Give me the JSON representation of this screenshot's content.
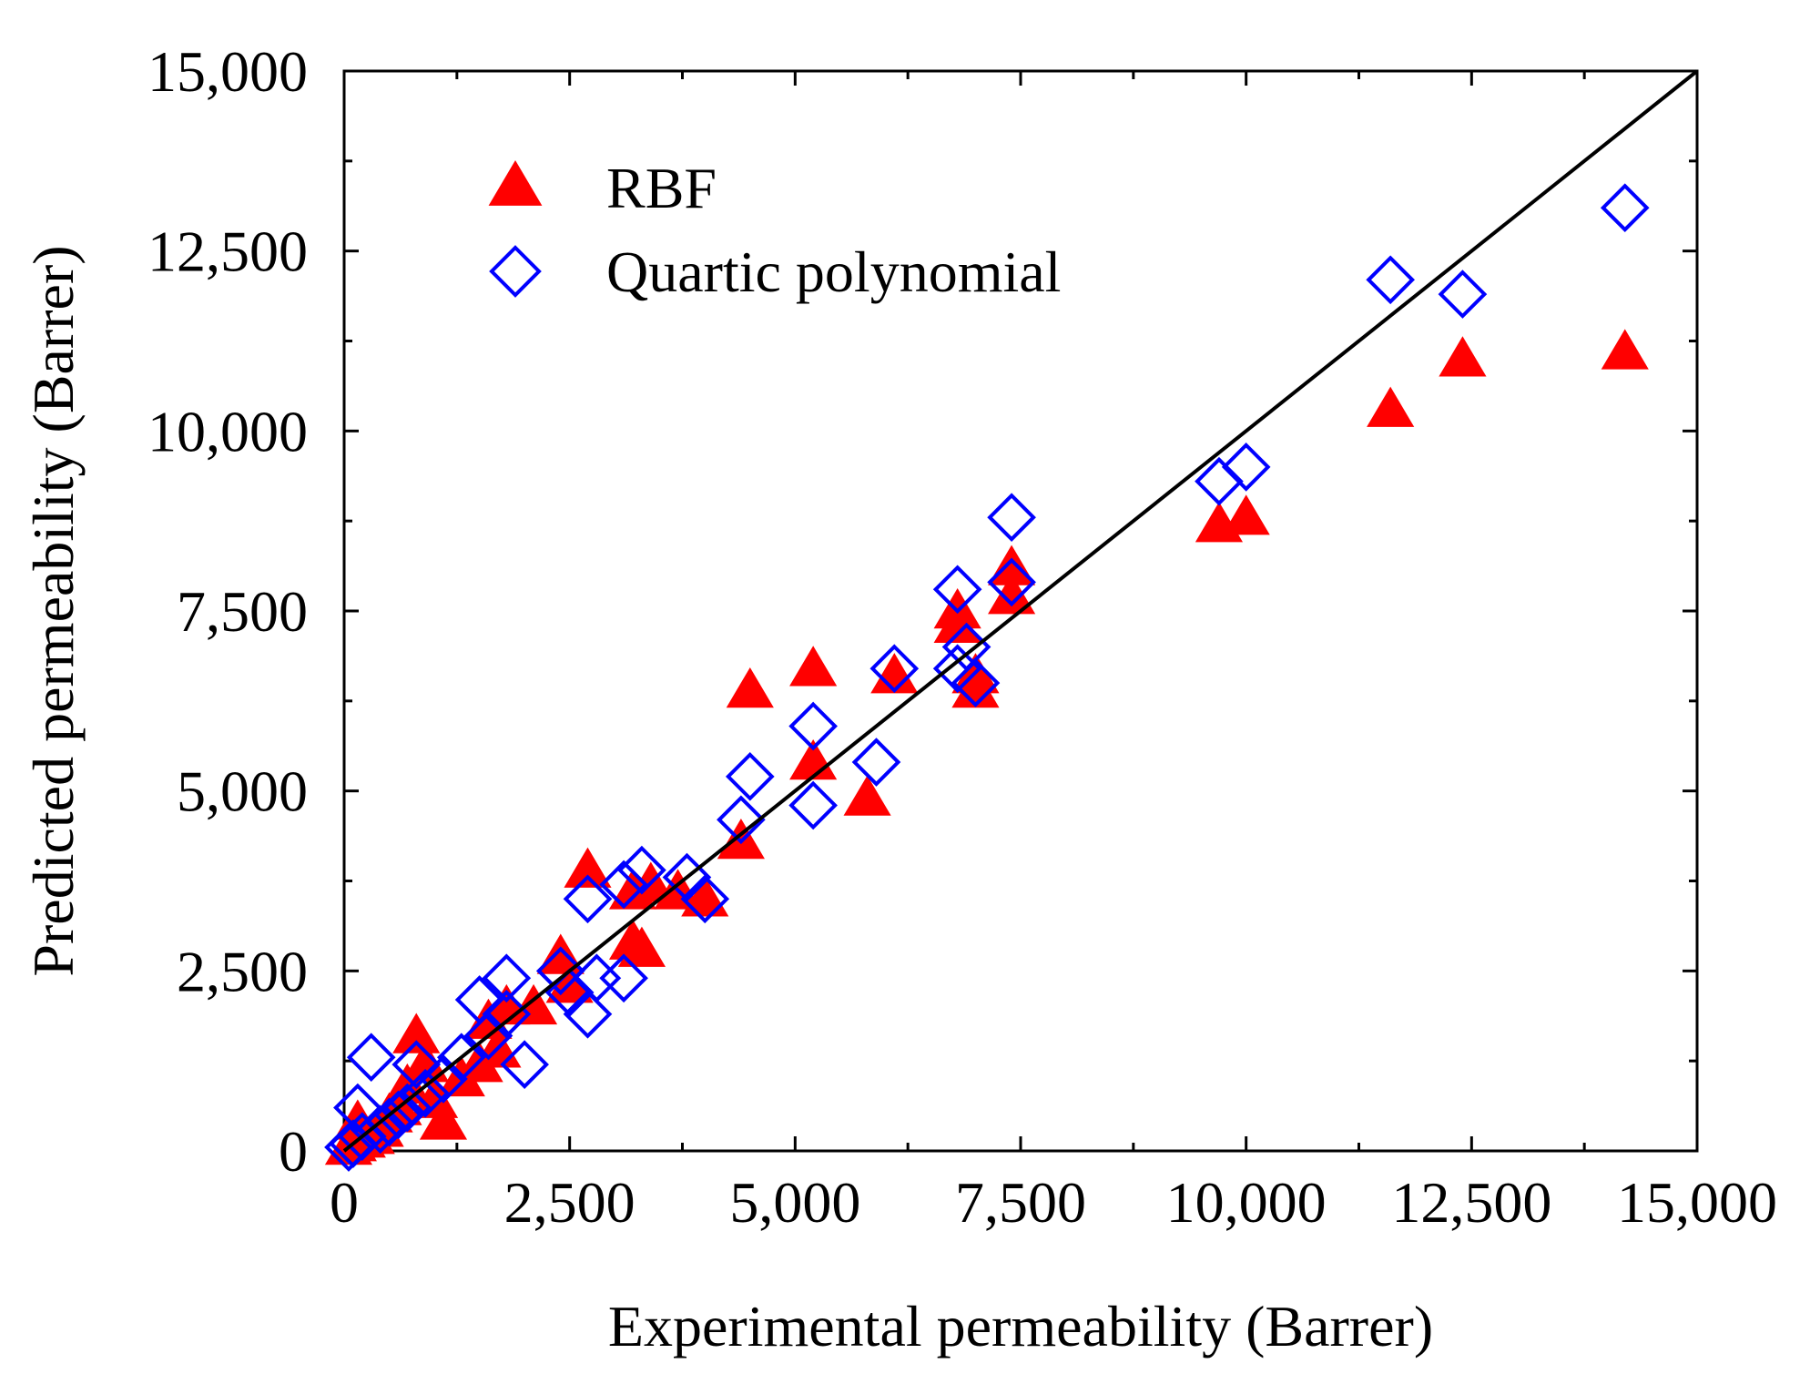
{
  "chart_data": {
    "type": "scatter",
    "title": "",
    "xlabel": "Experimental permeability (Barrer)",
    "ylabel": "Predicted permeability (Barrer)",
    "xlim": [
      0,
      15000
    ],
    "ylim": [
      0,
      15000
    ],
    "x_ticks": [
      0,
      2500,
      5000,
      7500,
      10000,
      12500,
      15000
    ],
    "y_ticks": [
      0,
      2500,
      5000,
      7500,
      10000,
      12500,
      15000
    ],
    "x_tick_labels": [
      "0",
      "2,500",
      "5,000",
      "7,500",
      "10,000",
      "12,500",
      "15,000"
    ],
    "y_tick_labels": [
      "0",
      "2,500",
      "5,000",
      "7,500",
      "10,000",
      "12,500",
      "15,000"
    ],
    "reference_line": {
      "from": [
        0,
        0
      ],
      "to": [
        15000,
        15000
      ],
      "color": "#000000"
    },
    "legend_position": "top-left",
    "series": [
      {
        "name": "RBF",
        "marker": "filled-triangle",
        "color": "#ff0000",
        "points": [
          [
            14200,
            11100
          ],
          [
            12400,
            11000
          ],
          [
            11600,
            10300
          ],
          [
            10000,
            8800
          ],
          [
            9700,
            8700
          ],
          [
            7400,
            8100
          ],
          [
            7400,
            7700
          ],
          [
            6800,
            7500
          ],
          [
            6800,
            7300
          ],
          [
            7000,
            6600
          ],
          [
            7000,
            6400
          ],
          [
            6100,
            6600
          ],
          [
            5200,
            6700
          ],
          [
            4500,
            6400
          ],
          [
            5200,
            5400
          ],
          [
            5800,
            4900
          ],
          [
            4400,
            4300
          ],
          [
            2700,
            3900
          ],
          [
            3200,
            3600
          ],
          [
            3400,
            3700
          ],
          [
            3700,
            3600
          ],
          [
            4000,
            3500
          ],
          [
            3200,
            2900
          ],
          [
            3300,
            2800
          ],
          [
            2400,
            2700
          ],
          [
            2500,
            2300
          ],
          [
            2100,
            2000
          ],
          [
            1800,
            2000
          ],
          [
            1600,
            1800
          ],
          [
            1700,
            1400
          ],
          [
            1500,
            1200
          ],
          [
            1300,
            1000
          ],
          [
            800,
            1600
          ],
          [
            900,
            1200
          ],
          [
            1100,
            400
          ],
          [
            1000,
            700
          ],
          [
            700,
            900
          ],
          [
            600,
            600
          ],
          [
            500,
            500
          ],
          [
            400,
            300
          ],
          [
            300,
            200
          ],
          [
            200,
            150
          ],
          [
            150,
            400
          ],
          [
            100,
            100
          ],
          [
            50,
            50
          ]
        ]
      },
      {
        "name": "Quartic polynomial",
        "marker": "open-diamond",
        "color": "#0000ff",
        "points": [
          [
            14200,
            13100
          ],
          [
            11600,
            12100
          ],
          [
            12400,
            11900
          ],
          [
            10000,
            9500
          ],
          [
            9700,
            9300
          ],
          [
            7400,
            8800
          ],
          [
            7400,
            7900
          ],
          [
            6800,
            7800
          ],
          [
            6900,
            7000
          ],
          [
            6800,
            6700
          ],
          [
            7000,
            6500
          ],
          [
            6100,
            6700
          ],
          [
            5200,
            5900
          ],
          [
            5900,
            5400
          ],
          [
            5200,
            4800
          ],
          [
            4500,
            5200
          ],
          [
            4400,
            4600
          ],
          [
            3300,
            3900
          ],
          [
            3100,
            3700
          ],
          [
            3800,
            3800
          ],
          [
            4000,
            3500
          ],
          [
            2700,
            3500
          ],
          [
            3100,
            2400
          ],
          [
            2400,
            2500
          ],
          [
            2500,
            2200
          ],
          [
            2700,
            1900
          ],
          [
            2800,
            2400
          ],
          [
            1800,
            2400
          ],
          [
            1500,
            2100
          ],
          [
            1800,
            1900
          ],
          [
            2000,
            1200
          ],
          [
            1600,
            1600
          ],
          [
            1300,
            1300
          ],
          [
            1100,
            1000
          ],
          [
            900,
            800
          ],
          [
            800,
            1200
          ],
          [
            700,
            600
          ],
          [
            600,
            500
          ],
          [
            500,
            400
          ],
          [
            400,
            300
          ],
          [
            300,
            1300
          ],
          [
            200,
            200
          ],
          [
            100,
            100
          ],
          [
            50,
            50
          ],
          [
            150,
            600
          ]
        ]
      }
    ]
  }
}
